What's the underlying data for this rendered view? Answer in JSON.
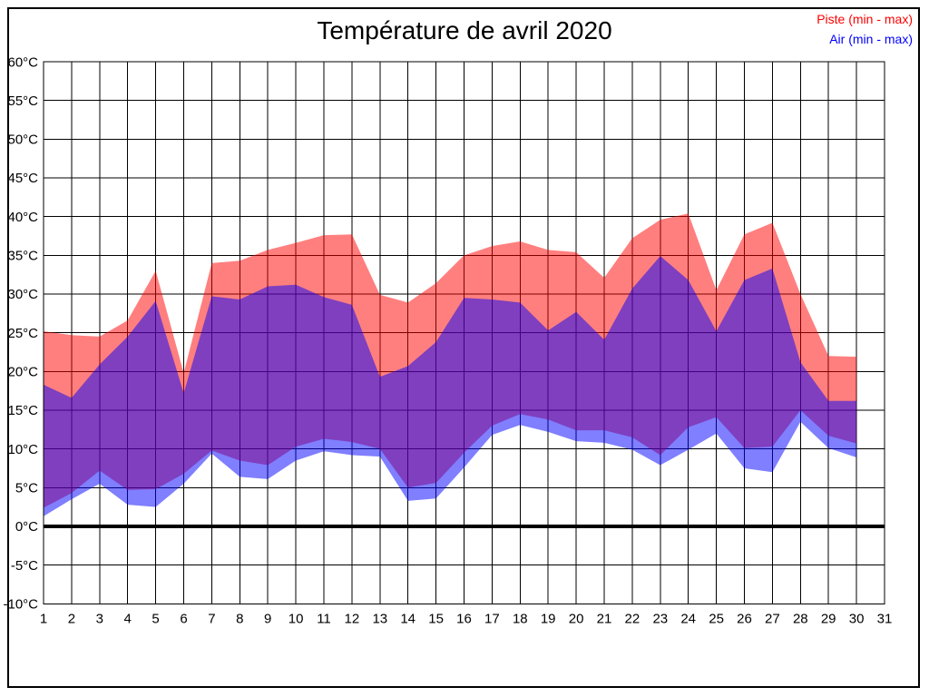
{
  "figure": {
    "title": "Température de avril 2020",
    "legend_piste": "Piste (min - max)",
    "legend_air": "Air (min - max)",
    "legend_piste_color": "#ff0000",
    "legend_air_color": "#0000ff"
  },
  "chart_data": {
    "type": "area",
    "title": "Température de avril 2020",
    "xlabel": "",
    "ylabel": "",
    "xlim": [
      1,
      31
    ],
    "ylim": [
      -10,
      60
    ],
    "y_tick_step": 5,
    "y_tick_suffix": "°C",
    "x_ticks": [
      1,
      2,
      3,
      4,
      5,
      6,
      7,
      8,
      9,
      10,
      11,
      12,
      13,
      14,
      15,
      16,
      17,
      18,
      19,
      20,
      21,
      22,
      23,
      24,
      25,
      26,
      27,
      28,
      29,
      30,
      31
    ],
    "grid": true,
    "zero_line_bold": true,
    "legend_position": "top-right",
    "days": [
      1,
      2,
      3,
      4,
      5,
      6,
      7,
      8,
      9,
      10,
      11,
      12,
      13,
      14,
      15,
      16,
      17,
      18,
      19,
      20,
      21,
      22,
      23,
      24,
      25,
      26,
      27,
      28,
      29,
      30
    ],
    "series": [
      {
        "name": "Piste max",
        "band": "piste",
        "values": [
          25.2,
          24.7,
          24.5,
          26.6,
          33.0,
          19.8,
          34.0,
          34.3,
          35.7,
          36.6,
          37.6,
          37.7,
          29.9,
          28.9,
          31.4,
          35.0,
          36.2,
          36.8,
          35.7,
          35.4,
          32.1,
          37.2,
          39.6,
          40.4,
          30.5,
          37.7,
          39.2,
          30.0,
          22.0,
          21.9
        ]
      },
      {
        "name": "Piste min",
        "band": "piste",
        "values": [
          2.4,
          4.3,
          7.2,
          4.7,
          4.8,
          6.8,
          9.8,
          8.5,
          7.9,
          10.3,
          11.3,
          10.9,
          10.0,
          5.0,
          5.6,
          9.5,
          13.0,
          14.5,
          13.8,
          12.4,
          12.4,
          11.5,
          9.2,
          12.8,
          14.1,
          10.1,
          10.3,
          15.0,
          11.7,
          10.7
        ]
      },
      {
        "name": "Air max",
        "band": "air",
        "values": [
          18.3,
          16.6,
          20.9,
          24.5,
          29.1,
          17.2,
          29.7,
          29.3,
          31.0,
          31.2,
          29.6,
          28.6,
          19.3,
          20.7,
          23.8,
          29.5,
          29.3,
          28.9,
          25.3,
          27.7,
          24.1,
          30.7,
          34.9,
          31.8,
          25.2,
          31.8,
          33.3,
          21.2,
          16.2,
          16.2
        ]
      },
      {
        "name": "Air min",
        "band": "air",
        "values": [
          1.3,
          3.5,
          5.5,
          2.8,
          2.5,
          5.5,
          9.4,
          6.4,
          6.1,
          8.5,
          9.7,
          9.2,
          9.0,
          3.3,
          3.6,
          7.6,
          11.8,
          13.1,
          12.2,
          11.0,
          10.8,
          9.9,
          7.9,
          9.9,
          12.0,
          7.5,
          7.0,
          13.5,
          10.1,
          8.9
        ]
      }
    ],
    "colors": {
      "piste_band": "#ff0000",
      "air_band": "#0000ff",
      "band_opacity": 0.5,
      "grid_line": "#000000",
      "axis_text": "#000000"
    }
  }
}
